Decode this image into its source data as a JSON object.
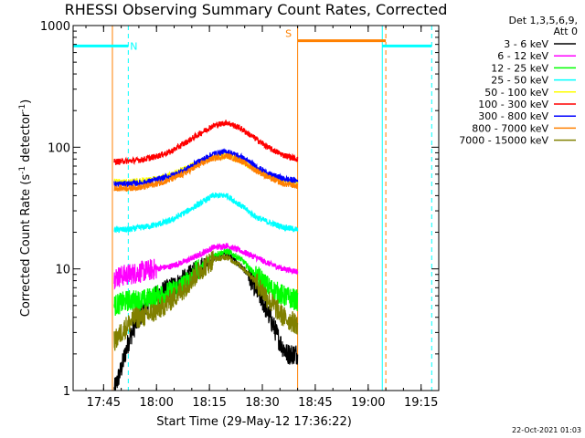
{
  "chart_data": {
    "type": "line",
    "title": "RHESSI Observing Summary Count Rates, Corrected",
    "xlabel": "Start Time (29-May-12 17:36:22)",
    "ylabel": "Corrected Count Rate (s",
    "ylabel_sup1": "-1",
    "ylabel_mid": " detector",
    "ylabel_sup2": "-1",
    "ylabel_end": ")",
    "y_scale": "log",
    "ylim": [
      1,
      1000
    ],
    "xlim": [
      "17:36:22",
      "19:20:00"
    ],
    "x_ticks": [
      "17:45",
      "18:00",
      "18:15",
      "18:30",
      "18:45",
      "19:00",
      "19:15"
    ],
    "y_ticks": [
      {
        "value": 1,
        "label": "1"
      },
      {
        "value": 10,
        "label": "10"
      },
      {
        "value": 100,
        "label": "100"
      },
      {
        "value": 1000,
        "label": "1000"
      }
    ],
    "legend_header": [
      "Det 1,3,5,6,9,",
      "Att 0"
    ],
    "legend_placement": "right",
    "series": [
      {
        "name": "3 - 6 keV",
        "color": "#000000",
        "x": [
          "17:48",
          "17:50",
          "17:52",
          "17:54",
          "17:56",
          "17:58",
          "18:02",
          "18:06",
          "18:10",
          "18:14",
          "18:18",
          "18:20",
          "18:22",
          "18:26",
          "18:30",
          "18:33",
          "18:35",
          "18:37",
          "18:40"
        ],
        "y": [
          1,
          1.5,
          2.5,
          3.5,
          4.5,
          5.5,
          6.5,
          7.5,
          9,
          11,
          13,
          13.5,
          12,
          9,
          5.5,
          3.5,
          2.5,
          2,
          2
        ]
      },
      {
        "name": "6 - 12 keV",
        "color": "#ff00ff",
        "x": [
          "17:48",
          "17:52",
          "17:56",
          "18:00",
          "18:04",
          "18:08",
          "18:12",
          "18:16",
          "18:20",
          "18:24",
          "18:28",
          "18:32",
          "18:36",
          "18:40"
        ],
        "y": [
          8.5,
          9,
          9.5,
          10,
          10.5,
          11.5,
          13,
          15,
          15.5,
          14,
          12.5,
          11,
          10,
          9.5
        ]
      },
      {
        "name": "12 - 25 keV",
        "color": "#00ff00",
        "x": [
          "17:48",
          "17:52",
          "17:56",
          "18:00",
          "18:04",
          "18:08",
          "18:12",
          "18:16",
          "18:20",
          "18:24",
          "18:28",
          "18:32",
          "18:36",
          "18:40"
        ],
        "y": [
          5,
          5.5,
          5.5,
          6,
          6.5,
          7.5,
          10,
          13,
          14,
          12,
          9,
          7,
          6,
          5.5
        ]
      },
      {
        "name": "25 - 50 keV",
        "color": "#00ffff",
        "x": [
          "17:48",
          "17:52",
          "17:56",
          "18:00",
          "18:04",
          "18:08",
          "18:12",
          "18:16",
          "18:20",
          "18:24",
          "18:28",
          "18:32",
          "18:36",
          "18:40"
        ],
        "y": [
          21,
          21,
          22,
          23,
          25,
          29,
          34,
          40,
          40,
          33,
          27,
          24,
          22,
          21
        ]
      },
      {
        "name": "50 - 100 keV",
        "color": "#ffff00",
        "x": [
          "17:48",
          "17:52",
          "17:56",
          "18:00",
          "18:04",
          "18:08",
          "18:12",
          "18:16",
          "18:20",
          "18:24",
          "18:28",
          "18:32",
          "18:36",
          "18:40"
        ],
        "y": [
          52,
          52,
          53,
          55,
          59,
          66,
          75,
          83,
          85,
          77,
          66,
          58,
          53,
          51
        ]
      },
      {
        "name": "100 - 300 keV",
        "color": "#ff0000",
        "x": [
          "17:48",
          "17:52",
          "17:56",
          "18:00",
          "18:04",
          "18:08",
          "18:12",
          "18:16",
          "18:20",
          "18:24",
          "18:28",
          "18:32",
          "18:36",
          "18:40"
        ],
        "y": [
          76,
          77,
          79,
          84,
          92,
          108,
          128,
          150,
          160,
          142,
          118,
          98,
          86,
          80
        ]
      },
      {
        "name": "300 - 800 keV",
        "color": "#0000ff",
        "x": [
          "17:48",
          "17:52",
          "17:56",
          "18:00",
          "18:04",
          "18:08",
          "18:12",
          "18:16",
          "18:20",
          "18:24",
          "18:28",
          "18:32",
          "18:36",
          "18:40"
        ],
        "y": [
          50,
          50,
          51,
          54,
          58,
          65,
          76,
          88,
          92,
          83,
          70,
          60,
          55,
          53
        ]
      },
      {
        "name": "800 - 7000 keV",
        "color": "#ff8000",
        "x": [
          "17:48",
          "17:52",
          "17:56",
          "18:00",
          "18:04",
          "18:08",
          "18:12",
          "18:16",
          "18:20",
          "18:24",
          "18:28",
          "18:32",
          "18:36",
          "18:40"
        ],
        "y": [
          46,
          46,
          47,
          50,
          54,
          61,
          71,
          81,
          85,
          77,
          65,
          56,
          50,
          48
        ]
      },
      {
        "name": "7000 - 15000 keV",
        "color": "#808000",
        "x": [
          "17:48",
          "17:50",
          "17:52",
          "17:54",
          "17:56",
          "18:00",
          "18:04",
          "18:08",
          "18:12",
          "18:16",
          "18:20",
          "18:24",
          "18:28",
          "18:32",
          "18:36",
          "18:40"
        ],
        "y": [
          2.5,
          3,
          3.5,
          4,
          4,
          4.5,
          5.5,
          7,
          9.5,
          12,
          12.5,
          10.5,
          8,
          5.5,
          4,
          3.5
        ]
      }
    ],
    "markers": [
      {
        "label": "N",
        "color": "#00ffff",
        "y": 680,
        "start": "17:36:22",
        "end": "17:52"
      },
      {
        "label": "S",
        "color": "#ff8000",
        "y": 750,
        "start": "18:40",
        "end": "19:05"
      },
      {
        "label": "",
        "color": "#00ffff",
        "y": 680,
        "start": "19:04",
        "end": "19:18"
      }
    ],
    "vlines": [
      {
        "time": "17:36:22",
        "color": "#00ffff",
        "style": "solid"
      },
      {
        "time": "17:52",
        "color": "#00ffff",
        "style": "dashed"
      },
      {
        "time": "17:47:30",
        "color": "#ff8000",
        "style": "solid"
      },
      {
        "time": "18:40",
        "color": "#ff8000",
        "style": "solid"
      },
      {
        "time": "19:04",
        "color": "#00ffff",
        "style": "solid"
      },
      {
        "time": "19:05",
        "color": "#ff8000",
        "style": "dashed"
      },
      {
        "time": "19:18",
        "color": "#00ffff",
        "style": "dashed"
      }
    ],
    "footer_date": "22-Oct-2021 01:03"
  }
}
